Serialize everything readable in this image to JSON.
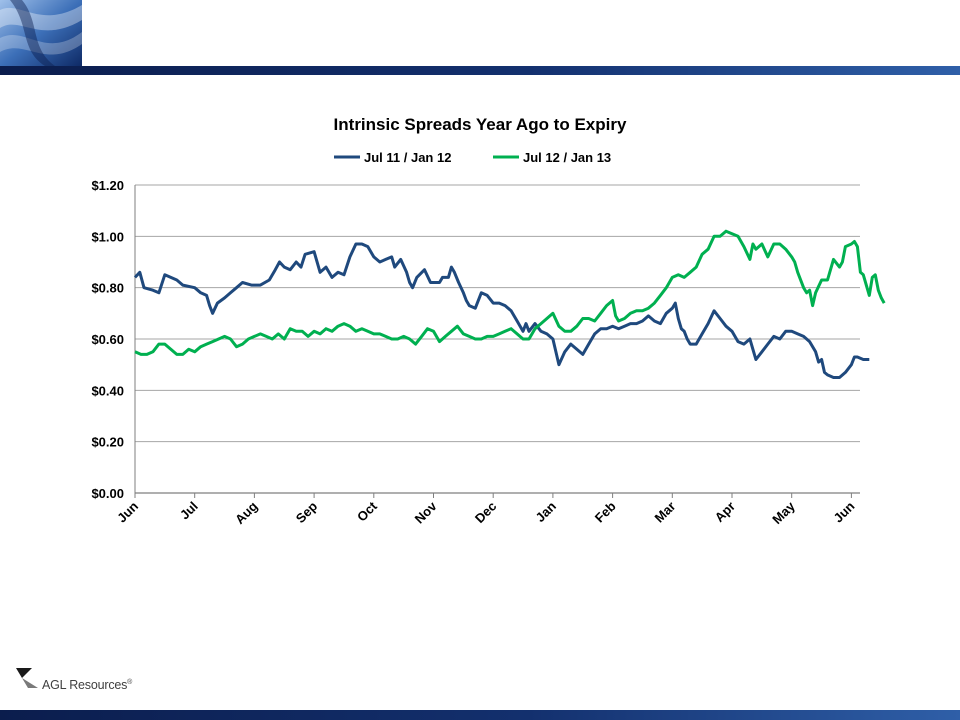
{
  "slide": {
    "footer_brand": "AGL Resources",
    "footer_brand_mark": "®",
    "colors": {
      "bar_dark": "#0b1d4d",
      "bar_light": "#2f5fa8"
    }
  },
  "chart_data": {
    "type": "line",
    "title": "Intrinsic Spreads Year Ago to Expiry",
    "xlabel": "",
    "ylabel": "",
    "ylim": [
      0,
      1.2
    ],
    "yticks": [
      "$0.00",
      "$0.20",
      "$0.40",
      "$0.60",
      "$0.80",
      "$1.00",
      "$1.20"
    ],
    "x_months": [
      "Jun",
      "Jul",
      "Aug",
      "Sep",
      "Oct",
      "Nov",
      "Dec",
      "Jan",
      "Feb",
      "Mar",
      "Apr",
      "May",
      "Jun"
    ],
    "grid": "horizontal",
    "legend_position": "top",
    "series": [
      {
        "name": "Jul 11 / Jan 12",
        "color": "#1f497d",
        "points": [
          [
            0.0,
            0.84
          ],
          [
            0.08,
            0.86
          ],
          [
            0.15,
            0.8
          ],
          [
            0.3,
            0.79
          ],
          [
            0.4,
            0.78
          ],
          [
            0.5,
            0.85
          ],
          [
            0.7,
            0.83
          ],
          [
            0.8,
            0.81
          ],
          [
            1.0,
            0.8
          ],
          [
            1.1,
            0.78
          ],
          [
            1.2,
            0.77
          ],
          [
            1.25,
            0.73
          ],
          [
            1.3,
            0.7
          ],
          [
            1.38,
            0.74
          ],
          [
            1.5,
            0.76
          ],
          [
            1.6,
            0.78
          ],
          [
            1.7,
            0.8
          ],
          [
            1.8,
            0.82
          ],
          [
            1.95,
            0.81
          ],
          [
            2.1,
            0.81
          ],
          [
            2.25,
            0.83
          ],
          [
            2.35,
            0.87
          ],
          [
            2.42,
            0.9
          ],
          [
            2.5,
            0.88
          ],
          [
            2.6,
            0.87
          ],
          [
            2.7,
            0.9
          ],
          [
            2.78,
            0.88
          ],
          [
            2.85,
            0.93
          ],
          [
            3.0,
            0.94
          ],
          [
            3.1,
            0.86
          ],
          [
            3.2,
            0.88
          ],
          [
            3.3,
            0.84
          ],
          [
            3.4,
            0.86
          ],
          [
            3.5,
            0.85
          ],
          [
            3.6,
            0.92
          ],
          [
            3.7,
            0.97
          ],
          [
            3.8,
            0.97
          ],
          [
            3.9,
            0.96
          ],
          [
            4.0,
            0.92
          ],
          [
            4.1,
            0.9
          ],
          [
            4.2,
            0.91
          ],
          [
            4.3,
            0.92
          ],
          [
            4.35,
            0.88
          ],
          [
            4.45,
            0.91
          ],
          [
            4.55,
            0.86
          ],
          [
            4.6,
            0.82
          ],
          [
            4.65,
            0.8
          ],
          [
            4.72,
            0.84
          ],
          [
            4.85,
            0.87
          ],
          [
            4.95,
            0.82
          ],
          [
            5.1,
            0.82
          ],
          [
            5.15,
            0.84
          ],
          [
            5.25,
            0.84
          ],
          [
            5.3,
            0.88
          ],
          [
            5.35,
            0.86
          ],
          [
            5.42,
            0.82
          ],
          [
            5.5,
            0.78
          ],
          [
            5.55,
            0.75
          ],
          [
            5.6,
            0.73
          ],
          [
            5.7,
            0.72
          ],
          [
            5.8,
            0.78
          ],
          [
            5.9,
            0.77
          ],
          [
            6.0,
            0.74
          ],
          [
            6.1,
            0.74
          ],
          [
            6.2,
            0.73
          ],
          [
            6.3,
            0.71
          ],
          [
            6.4,
            0.67
          ],
          [
            6.5,
            0.63
          ],
          [
            6.55,
            0.66
          ],
          [
            6.6,
            0.63
          ],
          [
            6.7,
            0.66
          ],
          [
            6.8,
            0.63
          ],
          [
            6.9,
            0.62
          ],
          [
            7.0,
            0.6
          ],
          [
            7.05,
            0.55
          ],
          [
            7.1,
            0.5
          ],
          [
            7.2,
            0.55
          ],
          [
            7.3,
            0.58
          ],
          [
            7.4,
            0.56
          ],
          [
            7.5,
            0.54
          ],
          [
            7.6,
            0.58
          ],
          [
            7.7,
            0.62
          ],
          [
            7.8,
            0.64
          ],
          [
            7.9,
            0.64
          ],
          [
            8.0,
            0.65
          ],
          [
            8.1,
            0.64
          ],
          [
            8.2,
            0.65
          ],
          [
            8.3,
            0.66
          ],
          [
            8.4,
            0.66
          ],
          [
            8.5,
            0.67
          ],
          [
            8.6,
            0.69
          ],
          [
            8.7,
            0.67
          ],
          [
            8.8,
            0.66
          ],
          [
            8.9,
            0.7
          ],
          [
            9.0,
            0.72
          ],
          [
            9.05,
            0.74
          ],
          [
            9.1,
            0.68
          ],
          [
            9.15,
            0.64
          ],
          [
            9.2,
            0.63
          ],
          [
            9.25,
            0.6
          ],
          [
            9.3,
            0.58
          ],
          [
            9.4,
            0.58
          ],
          [
            9.5,
            0.62
          ],
          [
            9.6,
            0.66
          ],
          [
            9.7,
            0.71
          ],
          [
            9.8,
            0.68
          ],
          [
            9.9,
            0.65
          ],
          [
            10.0,
            0.63
          ],
          [
            10.1,
            0.59
          ],
          [
            10.2,
            0.58
          ],
          [
            10.3,
            0.6
          ],
          [
            10.35,
            0.56
          ],
          [
            10.4,
            0.52
          ],
          [
            10.5,
            0.55
          ],
          [
            10.6,
            0.58
          ],
          [
            10.7,
            0.61
          ],
          [
            10.8,
            0.6
          ],
          [
            10.9,
            0.63
          ],
          [
            11.0,
            0.63
          ],
          [
            11.1,
            0.62
          ],
          [
            11.2,
            0.61
          ],
          [
            11.3,
            0.59
          ],
          [
            11.4,
            0.55
          ],
          [
            11.45,
            0.51
          ],
          [
            11.5,
            0.52
          ],
          [
            11.55,
            0.47
          ],
          [
            11.6,
            0.46
          ],
          [
            11.7,
            0.45
          ],
          [
            11.8,
            0.45
          ],
          [
            11.9,
            0.47
          ],
          [
            12.0,
            0.5
          ],
          [
            12.05,
            0.53
          ],
          [
            12.1,
            0.53
          ],
          [
            12.2,
            0.52
          ],
          [
            12.3,
            0.52
          ]
        ]
      },
      {
        "name": "Jul 12 / Jan 13",
        "color": "#00b050",
        "points": [
          [
            0.0,
            0.55
          ],
          [
            0.1,
            0.54
          ],
          [
            0.2,
            0.54
          ],
          [
            0.3,
            0.55
          ],
          [
            0.4,
            0.58
          ],
          [
            0.5,
            0.58
          ],
          [
            0.6,
            0.56
          ],
          [
            0.7,
            0.54
          ],
          [
            0.8,
            0.54
          ],
          [
            0.9,
            0.56
          ],
          [
            1.0,
            0.55
          ],
          [
            1.1,
            0.57
          ],
          [
            1.2,
            0.58
          ],
          [
            1.3,
            0.59
          ],
          [
            1.4,
            0.6
          ],
          [
            1.5,
            0.61
          ],
          [
            1.6,
            0.6
          ],
          [
            1.7,
            0.57
          ],
          [
            1.8,
            0.58
          ],
          [
            1.9,
            0.6
          ],
          [
            2.0,
            0.61
          ],
          [
            2.1,
            0.62
          ],
          [
            2.2,
            0.61
          ],
          [
            2.3,
            0.6
          ],
          [
            2.4,
            0.62
          ],
          [
            2.5,
            0.6
          ],
          [
            2.6,
            0.64
          ],
          [
            2.7,
            0.63
          ],
          [
            2.8,
            0.63
          ],
          [
            2.9,
            0.61
          ],
          [
            3.0,
            0.63
          ],
          [
            3.1,
            0.62
          ],
          [
            3.2,
            0.64
          ],
          [
            3.3,
            0.63
          ],
          [
            3.4,
            0.65
          ],
          [
            3.5,
            0.66
          ],
          [
            3.6,
            0.65
          ],
          [
            3.7,
            0.63
          ],
          [
            3.8,
            0.64
          ],
          [
            3.9,
            0.63
          ],
          [
            4.0,
            0.62
          ],
          [
            4.1,
            0.62
          ],
          [
            4.2,
            0.61
          ],
          [
            4.3,
            0.6
          ],
          [
            4.4,
            0.6
          ],
          [
            4.5,
            0.61
          ],
          [
            4.6,
            0.6
          ],
          [
            4.7,
            0.58
          ],
          [
            4.8,
            0.61
          ],
          [
            4.9,
            0.64
          ],
          [
            5.0,
            0.63
          ],
          [
            5.1,
            0.59
          ],
          [
            5.2,
            0.61
          ],
          [
            5.3,
            0.63
          ],
          [
            5.4,
            0.65
          ],
          [
            5.5,
            0.62
          ],
          [
            5.6,
            0.61
          ],
          [
            5.7,
            0.6
          ],
          [
            5.8,
            0.6
          ],
          [
            5.9,
            0.61
          ],
          [
            6.0,
            0.61
          ],
          [
            6.1,
            0.62
          ],
          [
            6.2,
            0.63
          ],
          [
            6.3,
            0.64
          ],
          [
            6.4,
            0.62
          ],
          [
            6.5,
            0.6
          ],
          [
            6.6,
            0.6
          ],
          [
            6.7,
            0.64
          ],
          [
            6.8,
            0.66
          ],
          [
            6.9,
            0.68
          ],
          [
            7.0,
            0.7
          ],
          [
            7.1,
            0.65
          ],
          [
            7.2,
            0.63
          ],
          [
            7.3,
            0.63
          ],
          [
            7.4,
            0.65
          ],
          [
            7.5,
            0.68
          ],
          [
            7.6,
            0.68
          ],
          [
            7.7,
            0.67
          ],
          [
            7.8,
            0.7
          ],
          [
            7.9,
            0.73
          ],
          [
            8.0,
            0.75
          ],
          [
            8.05,
            0.69
          ],
          [
            8.1,
            0.67
          ],
          [
            8.2,
            0.68
          ],
          [
            8.3,
            0.7
          ],
          [
            8.4,
            0.71
          ],
          [
            8.5,
            0.71
          ],
          [
            8.6,
            0.72
          ],
          [
            8.7,
            0.74
          ],
          [
            8.8,
            0.77
          ],
          [
            8.9,
            0.8
          ],
          [
            9.0,
            0.84
          ],
          [
            9.1,
            0.85
          ],
          [
            9.2,
            0.84
          ],
          [
            9.3,
            0.86
          ],
          [
            9.4,
            0.88
          ],
          [
            9.5,
            0.93
          ],
          [
            9.6,
            0.95
          ],
          [
            9.7,
            1.0
          ],
          [
            9.8,
            1.0
          ],
          [
            9.9,
            1.02
          ],
          [
            10.0,
            1.01
          ],
          [
            10.1,
            1.0
          ],
          [
            10.2,
            0.96
          ],
          [
            10.3,
            0.91
          ],
          [
            10.35,
            0.97
          ],
          [
            10.4,
            0.95
          ],
          [
            10.5,
            0.97
          ],
          [
            10.6,
            0.92
          ],
          [
            10.7,
            0.97
          ],
          [
            10.8,
            0.97
          ],
          [
            10.9,
            0.95
          ],
          [
            11.0,
            0.92
          ],
          [
            11.05,
            0.9
          ],
          [
            11.1,
            0.86
          ],
          [
            11.2,
            0.8
          ],
          [
            11.25,
            0.78
          ],
          [
            11.3,
            0.79
          ],
          [
            11.35,
            0.73
          ],
          [
            11.4,
            0.78
          ],
          [
            11.5,
            0.83
          ],
          [
            11.6,
            0.83
          ],
          [
            11.7,
            0.91
          ],
          [
            11.8,
            0.88
          ],
          [
            11.85,
            0.9
          ],
          [
            11.9,
            0.96
          ],
          [
            12.0,
            0.97
          ],
          [
            12.05,
            0.98
          ],
          [
            12.1,
            0.96
          ],
          [
            12.15,
            0.86
          ],
          [
            12.2,
            0.85
          ],
          [
            12.3,
            0.77
          ],
          [
            12.35,
            0.84
          ],
          [
            12.4,
            0.85
          ],
          [
            12.45,
            0.79
          ],
          [
            12.5,
            0.76
          ],
          [
            12.55,
            0.74
          ]
        ]
      }
    ]
  }
}
